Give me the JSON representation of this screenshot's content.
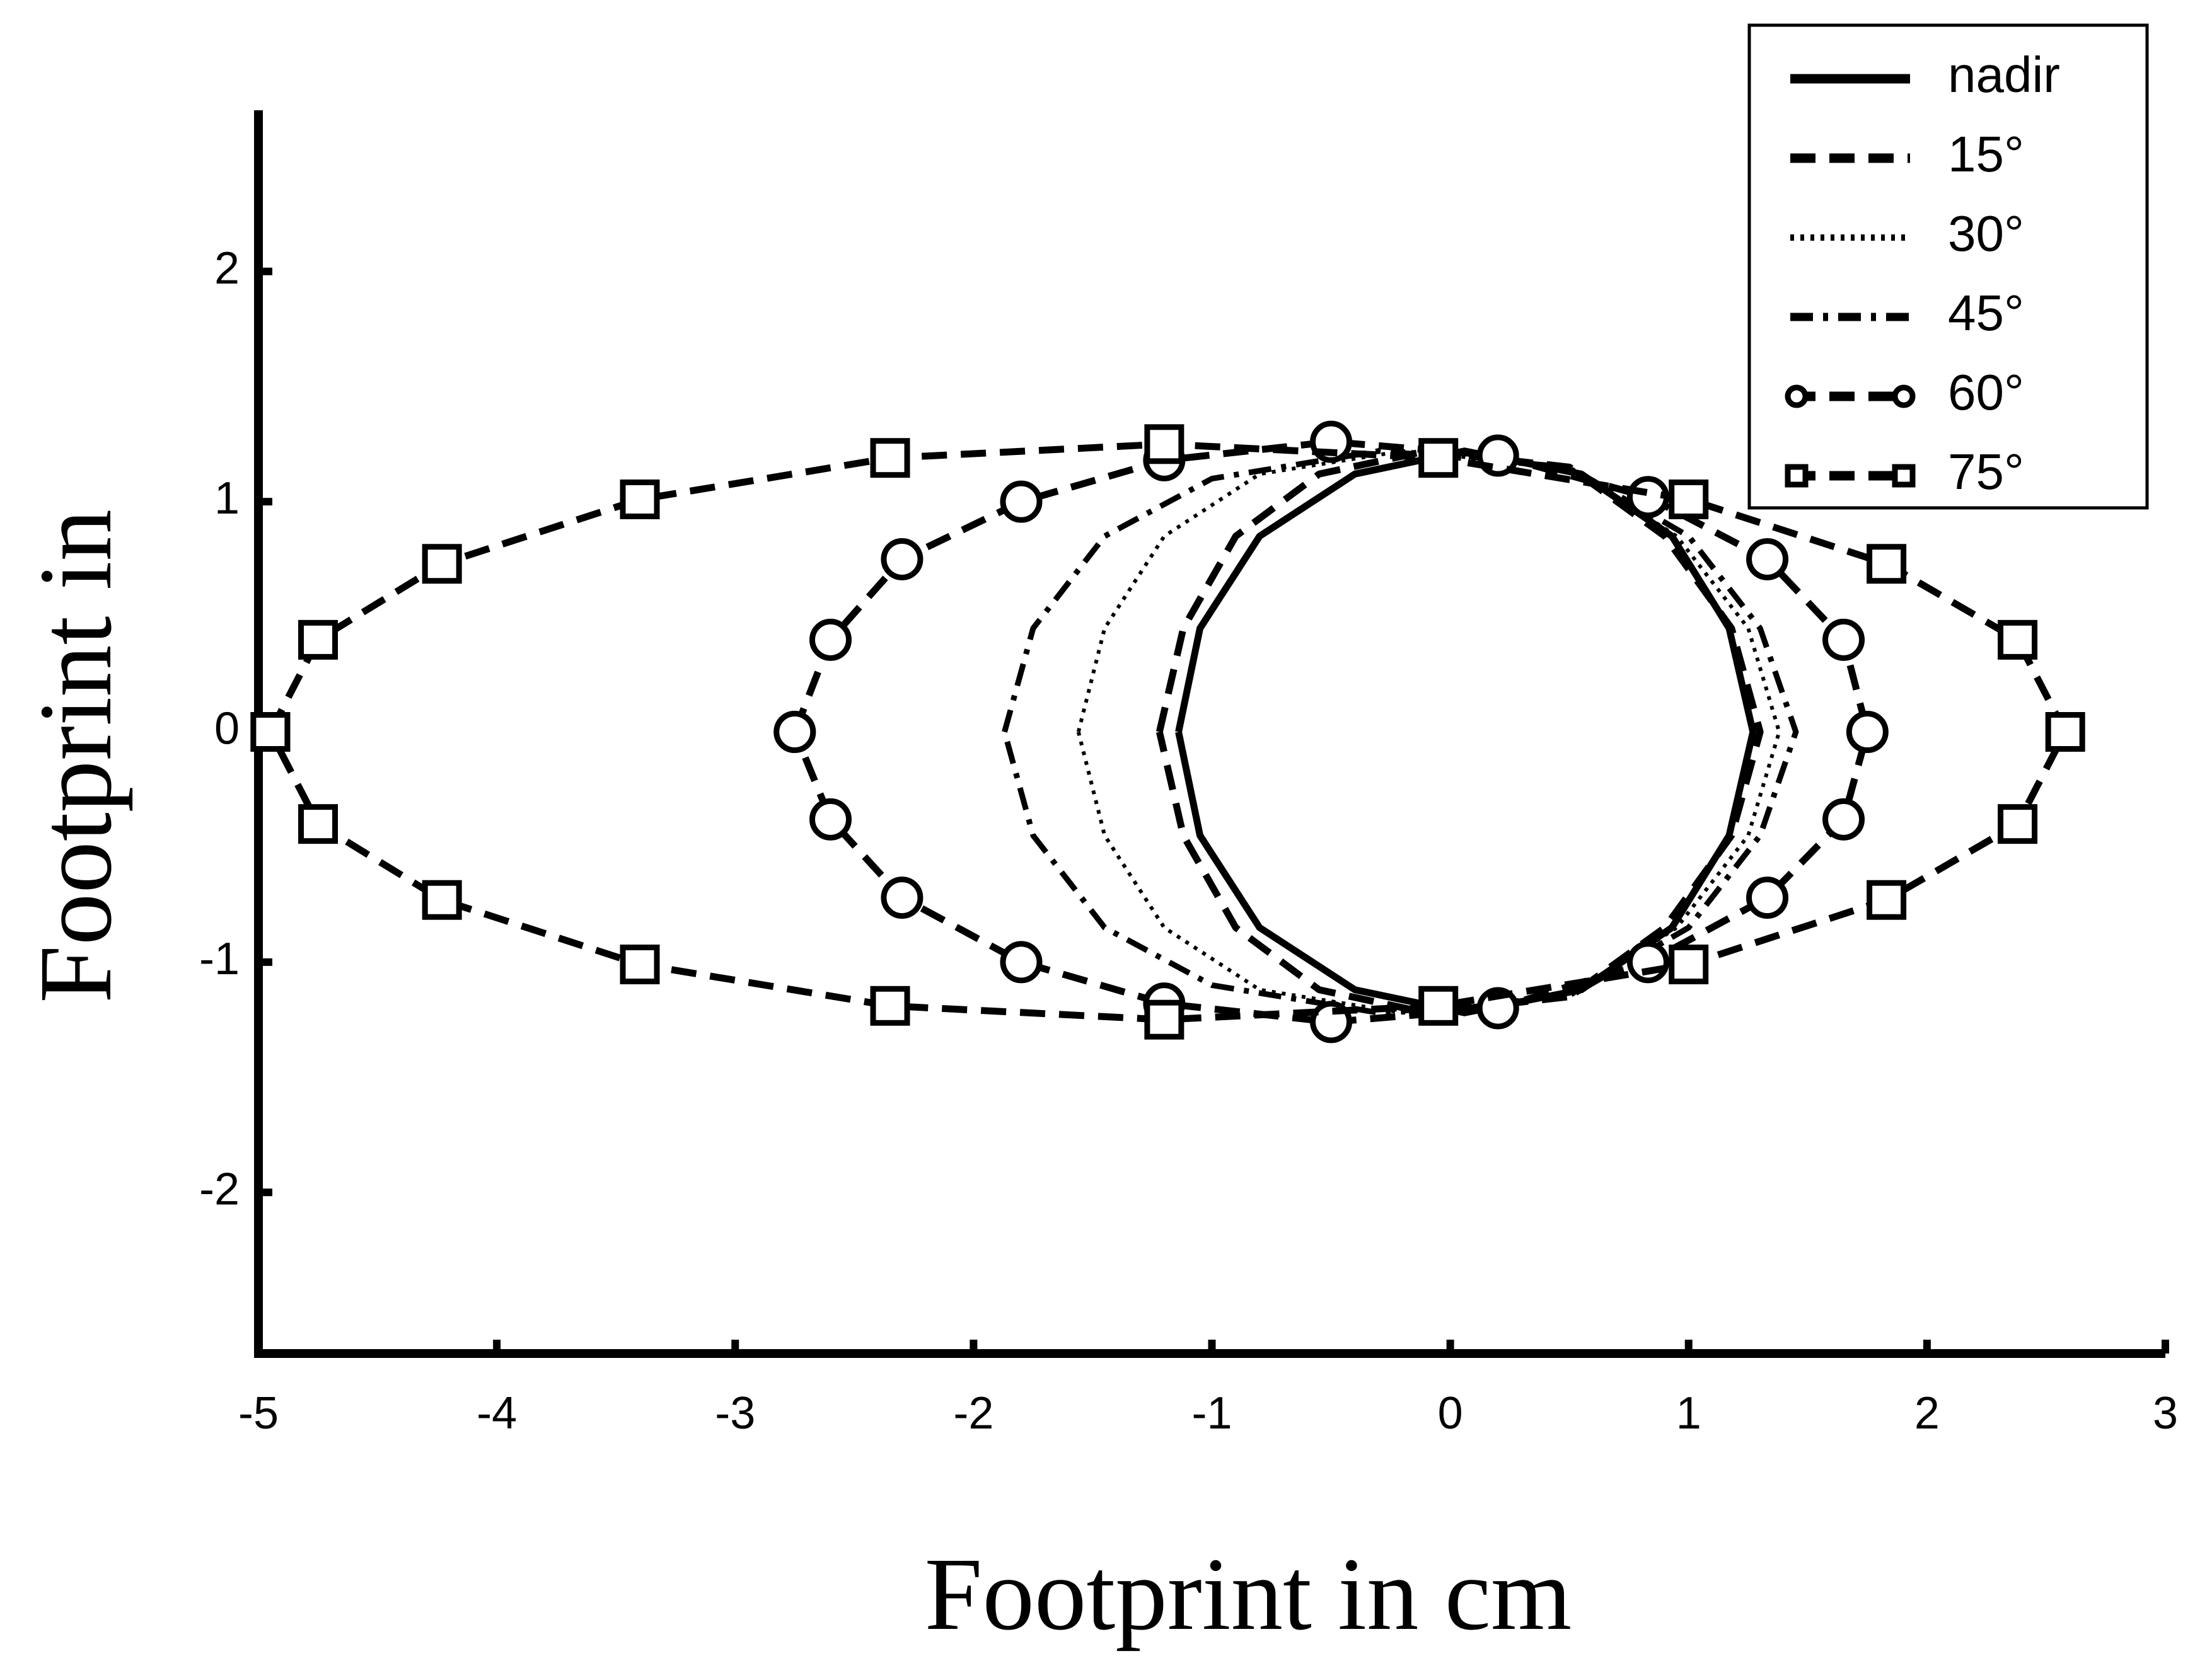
{
  "chart_data": {
    "type": "line",
    "x_label": "Footprint in cm",
    "y_label": "Footprint in",
    "xlim": [
      -5,
      3
    ],
    "ylim": [
      -2.7,
      2.7
    ],
    "xticks": [
      -5,
      -4,
      -3,
      -2,
      -1,
      0,
      1,
      2,
      3
    ],
    "yticks": [
      -2,
      -1,
      0,
      1,
      2
    ],
    "grid": false,
    "legend": "upper right",
    "series": [
      {
        "name": "nadir",
        "color": "#000000",
        "dash": "solid",
        "marker": "none",
        "x": [
          -1.14,
          -1.05,
          -0.8,
          -0.4,
          0.06,
          0.55,
          0.93,
          1.17,
          1.27,
          1.17,
          0.93,
          0.55,
          0.06,
          -0.4,
          -0.8,
          -1.05,
          -1.14
        ],
        "values": [
          0,
          0.45,
          0.85,
          1.12,
          1.22,
          1.12,
          0.85,
          0.45,
          0,
          -0.45,
          -0.85,
          -1.12,
          -1.22,
          -1.12,
          -0.85,
          -0.45,
          0
        ]
      },
      {
        "name": "15°",
        "color": "#000000",
        "dash": "dashed",
        "marker": "none",
        "x": [
          -1.22,
          -1.12,
          -0.9,
          -0.55,
          -0.1,
          0.5,
          0.9,
          1.18,
          1.3,
          1.18,
          0.9,
          0.5,
          -0.1,
          -0.55,
          -0.9,
          -1.12,
          -1.22
        ],
        "values": [
          0,
          0.45,
          0.85,
          1.12,
          1.22,
          1.15,
          0.85,
          0.45,
          0,
          -0.45,
          -0.85,
          -1.15,
          -1.22,
          -1.12,
          -0.85,
          -0.45,
          0
        ]
      },
      {
        "name": "30°",
        "color": "#000000",
        "dash": "dotted",
        "marker": "none",
        "x": [
          -1.56,
          -1.45,
          -1.2,
          -0.8,
          -0.2,
          0.5,
          0.95,
          1.25,
          1.38,
          1.25,
          0.95,
          0.5,
          -0.2,
          -0.8,
          -1.2,
          -1.45,
          -1.56
        ],
        "values": [
          0,
          0.45,
          0.85,
          1.12,
          1.22,
          1.15,
          0.85,
          0.45,
          0,
          -0.45,
          -0.85,
          -1.15,
          -1.22,
          -1.12,
          -0.85,
          -0.45,
          0
        ]
      },
      {
        "name": "45°",
        "color": "#000000",
        "dash": "dashdot",
        "marker": "none",
        "x": [
          -1.87,
          -1.75,
          -1.45,
          -1.0,
          -0.3,
          0.5,
          1.0,
          1.3,
          1.45,
          1.3,
          1.0,
          0.5,
          -0.3,
          -1.0,
          -1.45,
          -1.75,
          -1.87
        ],
        "values": [
          0,
          0.45,
          0.85,
          1.1,
          1.22,
          1.15,
          0.85,
          0.45,
          0,
          -0.45,
          -0.85,
          -1.15,
          -1.22,
          -1.1,
          -0.85,
          -0.45,
          0
        ]
      },
      {
        "name": "60°",
        "color": "#000000",
        "dash": "dashed",
        "marker": "circle",
        "x": [
          -2.75,
          -2.6,
          -2.3,
          -1.8,
          -1.2,
          -0.5,
          0.2,
          0.83,
          1.33,
          1.65,
          1.75,
          1.65,
          1.33,
          0.83,
          0.2,
          -0.5,
          -1.2,
          -1.8,
          -2.3,
          -2.6,
          -2.75
        ],
        "values": [
          0,
          0.4,
          0.75,
          1.0,
          1.18,
          1.26,
          1.2,
          1.02,
          0.75,
          0.4,
          0,
          -0.38,
          -0.72,
          -1.0,
          -1.2,
          -1.26,
          -1.18,
          -1.0,
          -0.72,
          -0.38,
          0
        ]
      },
      {
        "name": "75°",
        "color": "#000000",
        "dash": "dashed",
        "marker": "square",
        "x": [
          -4.95,
          -4.75,
          -4.23,
          -3.4,
          -2.35,
          -1.2,
          -0.05,
          1.0,
          1.83,
          2.38,
          2.58,
          2.38,
          1.83,
          1.0,
          -0.05,
          -1.2,
          -2.35,
          -3.4,
          -4.23,
          -4.75,
          -4.95
        ],
        "values": [
          0,
          0.4,
          0.73,
          1.01,
          1.19,
          1.25,
          1.19,
          1.01,
          0.73,
          0.4,
          0,
          -0.4,
          -0.73,
          -1.01,
          -1.19,
          -1.25,
          -1.19,
          -1.01,
          -0.73,
          -0.4,
          0
        ]
      }
    ]
  }
}
